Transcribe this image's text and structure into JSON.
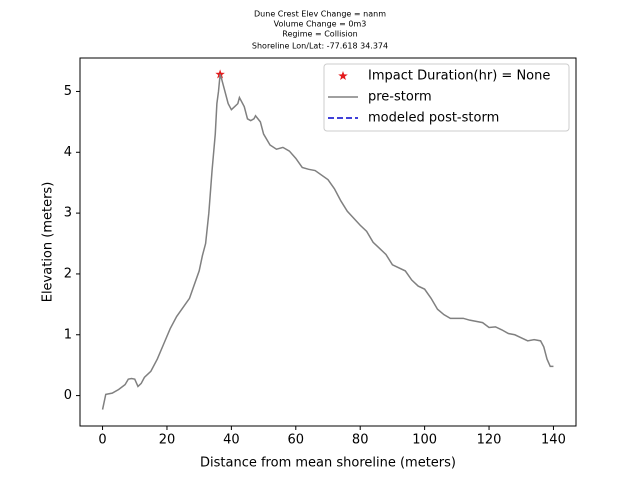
{
  "chart_data": {
    "type": "line",
    "title": [
      "Dune Crest Elev Change = nanm",
      "Volume Change = 0m3",
      "Regime = Collision",
      "Shoreline Lon/Lat: -77.618 34.374"
    ],
    "x_label": "Distance from mean shoreline (meters)",
    "y_label": "Elevation (meters)",
    "xlim": [
      -7,
      147
    ],
    "ylim": [
      -0.5,
      5.55
    ],
    "xticks": [
      0,
      20,
      40,
      60,
      80,
      100,
      120,
      140
    ],
    "yticks": [
      0,
      1,
      2,
      3,
      4,
      5
    ],
    "grid": false,
    "legend": "upper right",
    "series": [
      {
        "name": "Impact Duration(hr) = None",
        "color": "#e41a1c",
        "style": "star",
        "x": [
          36.5
        ],
        "values": [
          5.28
        ]
      },
      {
        "name": "pre-storm",
        "color": "#808080",
        "style": "solid",
        "x": [
          0,
          1,
          3,
          5,
          7,
          8,
          9,
          10,
          11,
          12,
          13,
          14,
          15,
          17,
          19,
          21,
          23,
          25,
          27,
          28,
          30,
          31,
          32,
          33,
          34,
          35,
          35.5,
          36,
          36.5,
          37,
          38,
          39,
          40,
          41,
          42,
          42.5,
          44,
          45,
          46,
          47,
          47.5,
          49,
          50,
          52,
          54,
          56,
          58,
          60,
          62,
          64,
          66,
          70,
          72,
          74,
          76,
          80,
          82,
          84,
          88,
          90,
          94,
          96,
          98,
          100,
          102,
          104,
          106,
          108,
          112,
          114,
          118,
          120,
          122,
          124,
          126,
          128,
          130,
          132,
          134,
          136,
          137,
          138,
          139,
          140
        ],
        "values": [
          -0.23,
          0.02,
          0.04,
          0.1,
          0.18,
          0.27,
          0.28,
          0.27,
          0.15,
          0.2,
          0.3,
          0.35,
          0.4,
          0.6,
          0.85,
          1.1,
          1.3,
          1.45,
          1.6,
          1.75,
          2.05,
          2.3,
          2.5,
          3.0,
          3.7,
          4.3,
          4.8,
          5.0,
          5.28,
          5.2,
          5.0,
          4.8,
          4.7,
          4.75,
          4.8,
          4.9,
          4.75,
          4.55,
          4.52,
          4.55,
          4.6,
          4.5,
          4.3,
          4.12,
          4.05,
          4.08,
          4.02,
          3.9,
          3.75,
          3.72,
          3.7,
          3.55,
          3.4,
          3.2,
          3.03,
          2.8,
          2.7,
          2.52,
          2.32,
          2.15,
          2.05,
          1.9,
          1.8,
          1.75,
          1.6,
          1.42,
          1.33,
          1.27,
          1.27,
          1.24,
          1.2,
          1.12,
          1.13,
          1.08,
          1.02,
          1.0,
          0.95,
          0.9,
          0.92,
          0.9,
          0.8,
          0.6,
          0.48,
          0.48
        ]
      },
      {
        "name": "modeled post-storm",
        "color": "#0000cc",
        "style": "dashed",
        "x": [],
        "values": []
      }
    ]
  }
}
